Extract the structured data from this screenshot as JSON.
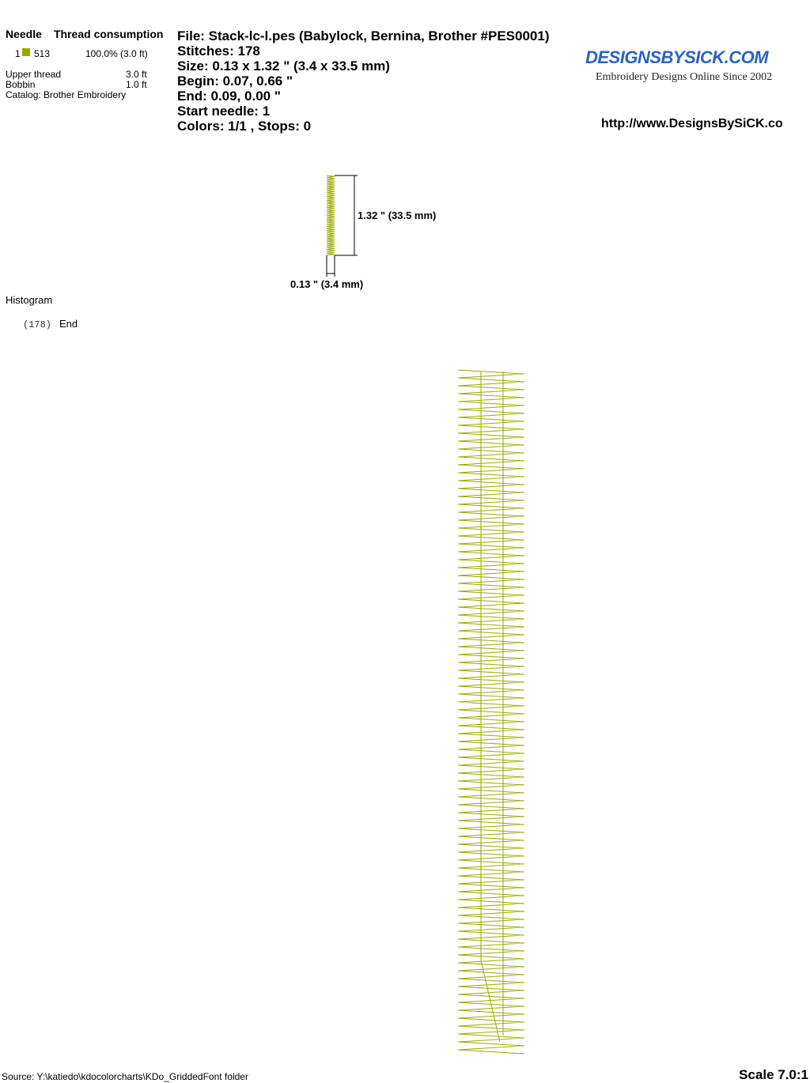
{
  "thread_table": {
    "needle_header": "Needle",
    "consumption_header": "Thread consumption",
    "rows": [
      {
        "needle": "1",
        "code": "513",
        "consumption": "100.0% (3.0 ft)",
        "color": "#9aab00"
      }
    ],
    "upper_thread_label": "Upper thread",
    "upper_thread_value": "3.0 ft",
    "bobbin_label": "Bobbin",
    "bobbin_value": "1.0 ft",
    "catalog": "Catalog: Brother Embroidery"
  },
  "info": {
    "file": "File: Stack-lc-l.pes  (Babylock, Bernina, Brother #PES0001)",
    "stitches": "Stitches: 178",
    "size": "Size: 0.13 x 1.32 \" (3.4 x 33.5 mm)",
    "begin": "Begin: 0.07, 0.66 \"",
    "end": "End: 0.09, 0.00 \"",
    "start_needle": "Start needle: 1",
    "colors": "Colors: 1/1 , Stops: 0"
  },
  "logo": {
    "text": "DESIGNSBYSICK.COM",
    "tagline": "Embroidery Designs Online Since 2002",
    "color": "#2a62c4"
  },
  "url": "http://www.DesignsBySiCK.co",
  "preview": {
    "height_label": "1.32 \" (33.5 mm)",
    "width_label": "0.13 \" (3.4 mm)"
  },
  "histogram": {
    "title": "Histogram",
    "count": "(178)",
    "label": "End"
  },
  "stitch_color": "#9aab00",
  "footer": {
    "source": "Source: Y:\\katiedo\\kdocolorcharts\\KDo_GriddedFont folder",
    "scale": "Scale 7.0:1"
  }
}
